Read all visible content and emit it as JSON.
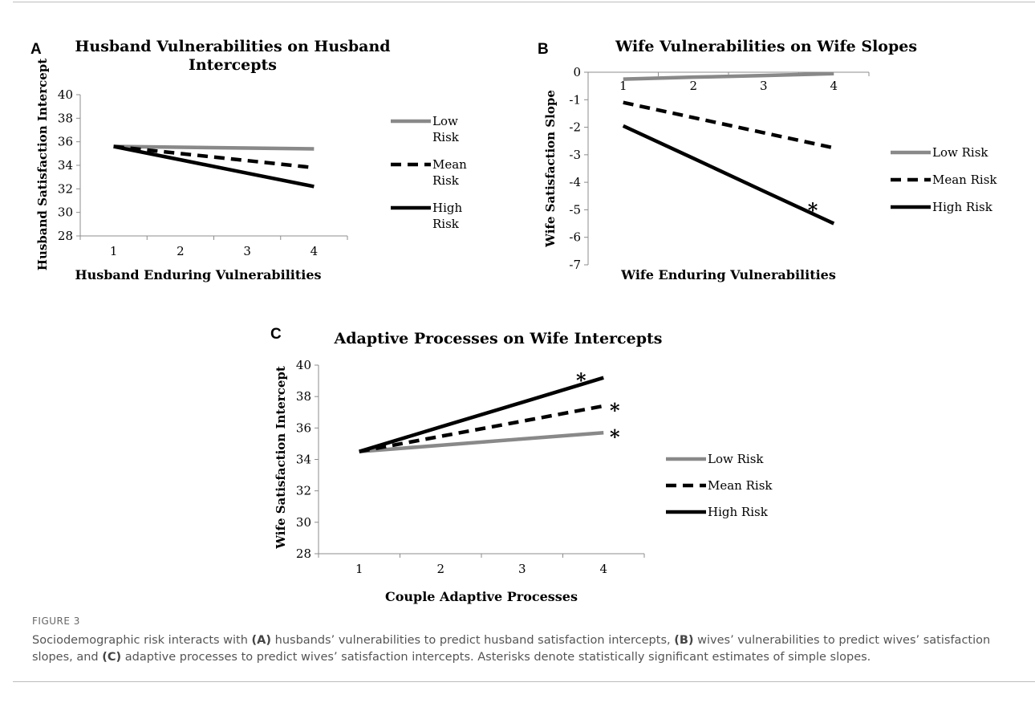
{
  "figure": {
    "label": "FIGURE 3",
    "caption": {
      "t1": "Sociodemographic risk interacts with ",
      "a": "(A)",
      "t2": " husbands’ vulnerabilities to predict husband satisfaction intercepts, ",
      "b": "(B)",
      "t3": " wives’ vulnerabilities to predict wives’ satisfaction slopes, and ",
      "c": "(C)",
      "t4": " adaptive processes to predict wives’ satisfaction intercepts. Asterisks denote statistically significant estimates of simple slopes."
    }
  },
  "colors": {
    "low": "#898989",
    "mean": "#000000",
    "high": "#000000"
  },
  "chart_data": [
    {
      "panel": "A",
      "type": "line",
      "title_lines": [
        "Husband Vulnerabilities on Husband",
        "Intercepts"
      ],
      "xlabel": "Husband Enduring Vulnerabilities",
      "ylabel": "Husband Satisfaction Intercept",
      "x": [
        1,
        2,
        3,
        4
      ],
      "xlim": [
        0.5,
        4.5
      ],
      "ylim": [
        28,
        40
      ],
      "yticks": [
        28,
        30,
        32,
        34,
        36,
        38,
        40
      ],
      "legend": "right",
      "legend_mode": "twoline",
      "series": [
        {
          "name": "Low Risk",
          "name_lines": [
            "Low",
            "Risk"
          ],
          "style": "solid-gray",
          "values": [
            35.6,
            35.53,
            35.47,
            35.4
          ],
          "star": false
        },
        {
          "name": "Mean Risk",
          "name_lines": [
            "Mean",
            "Risk"
          ],
          "style": "dashed",
          "values": [
            35.6,
            35.0,
            34.4,
            33.8
          ],
          "star": false
        },
        {
          "name": "High Risk",
          "name_lines": [
            "High",
            "Risk"
          ],
          "style": "solid-black",
          "values": [
            35.6,
            34.47,
            33.33,
            32.2
          ],
          "star": false
        }
      ]
    },
    {
      "panel": "B",
      "type": "line",
      "title_lines": [
        "Wife Vulnerabilities on Wife Slopes"
      ],
      "xlabel": "Wife Enduring Vulnerabilities",
      "ylabel": "Wife Satisfaction Slope",
      "x": [
        1,
        2,
        3,
        4
      ],
      "xlim": [
        0.5,
        4.5
      ],
      "ylim": [
        -7,
        0
      ],
      "yticks": [
        -7,
        -6,
        -5,
        -4,
        -3,
        -2,
        -1,
        0
      ],
      "x_axis_at_top": true,
      "legend": "right",
      "legend_mode": "oneline",
      "series": [
        {
          "name": "Low Risk",
          "style": "solid-gray",
          "values": [
            -0.25,
            -0.18,
            -0.12,
            -0.05
          ],
          "star": false
        },
        {
          "name": "Mean Risk",
          "style": "dashed",
          "values": [
            -1.1,
            -1.65,
            -2.2,
            -2.75
          ],
          "star": false
        },
        {
          "name": "High Risk",
          "style": "solid-black",
          "values": [
            -1.95,
            -3.13,
            -4.32,
            -5.5
          ],
          "star": true,
          "star_text": "*"
        }
      ]
    },
    {
      "panel": "C",
      "type": "line",
      "title_lines": [
        "Adaptive Processes on Wife Intercepts"
      ],
      "xlabel": "Couple Adaptive Processes",
      "ylabel": "Wife Satisfaction Intercept",
      "x": [
        1,
        2,
        3,
        4
      ],
      "xlim": [
        0.5,
        4.5
      ],
      "ylim": [
        28,
        40
      ],
      "yticks": [
        28,
        30,
        32,
        34,
        36,
        38,
        40
      ],
      "legend": "right",
      "legend_mode": "oneline",
      "series": [
        {
          "name": "Low Risk",
          "style": "solid-gray",
          "values": [
            34.5,
            34.9,
            35.3,
            35.7
          ],
          "star": true,
          "star_text": "*"
        },
        {
          "name": "Mean Risk",
          "style": "dashed",
          "values": [
            34.5,
            35.47,
            36.43,
            37.4
          ],
          "star": true,
          "star_text": "*"
        },
        {
          "name": "High Risk",
          "style": "solid-black",
          "values": [
            34.5,
            36.07,
            37.63,
            39.2
          ],
          "star": true,
          "star_text": "*"
        }
      ]
    }
  ]
}
